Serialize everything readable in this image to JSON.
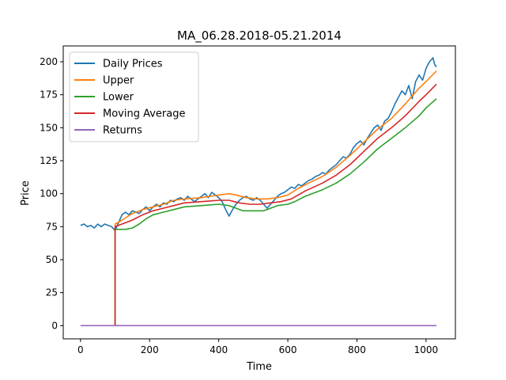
{
  "chart_data": {
    "type": "line",
    "title": "MA_06.28.2018-05.21.2014",
    "xlabel": "Time",
    "ylabel": "Price",
    "xlim": [
      -50,
      1085
    ],
    "ylim": [
      -10,
      212
    ],
    "xticks": [
      0,
      200,
      400,
      600,
      800,
      1000
    ],
    "yticks": [
      0,
      25,
      50,
      75,
      100,
      125,
      150,
      175,
      200
    ],
    "grid": false,
    "legend_position": "upper-left",
    "series": [
      {
        "name": "Daily Prices",
        "color": "#1f77b4",
        "points": [
          [
            0,
            76
          ],
          [
            10,
            77
          ],
          [
            20,
            75
          ],
          [
            30,
            76
          ],
          [
            40,
            74
          ],
          [
            50,
            77
          ],
          [
            60,
            75
          ],
          [
            70,
            77
          ],
          [
            80,
            76
          ],
          [
            90,
            75
          ],
          [
            100,
            72
          ],
          [
            110,
            78
          ],
          [
            120,
            84
          ],
          [
            130,
            86
          ],
          [
            140,
            84
          ],
          [
            150,
            87
          ],
          [
            160,
            86
          ],
          [
            170,
            85
          ],
          [
            180,
            88
          ],
          [
            190,
            90
          ],
          [
            200,
            87
          ],
          [
            210,
            90
          ],
          [
            220,
            92
          ],
          [
            230,
            90
          ],
          [
            240,
            93
          ],
          [
            250,
            92
          ],
          [
            260,
            95
          ],
          [
            270,
            94
          ],
          [
            280,
            96
          ],
          [
            290,
            97
          ],
          [
            300,
            95
          ],
          [
            310,
            98
          ],
          [
            320,
            96
          ],
          [
            330,
            94
          ],
          [
            340,
            96
          ],
          [
            350,
            98
          ],
          [
            360,
            100
          ],
          [
            370,
            97
          ],
          [
            380,
            101
          ],
          [
            390,
            99
          ],
          [
            400,
            97
          ],
          [
            410,
            94
          ],
          [
            420,
            88
          ],
          [
            430,
            83
          ],
          [
            440,
            88
          ],
          [
            450,
            92
          ],
          [
            460,
            95
          ],
          [
            470,
            97
          ],
          [
            480,
            98
          ],
          [
            490,
            96
          ],
          [
            500,
            95
          ],
          [
            510,
            97
          ],
          [
            520,
            95
          ],
          [
            530,
            92
          ],
          [
            540,
            89
          ],
          [
            550,
            92
          ],
          [
            560,
            95
          ],
          [
            570,
            98
          ],
          [
            580,
            100
          ],
          [
            590,
            101
          ],
          [
            600,
            103
          ],
          [
            610,
            105
          ],
          [
            620,
            104
          ],
          [
            630,
            107
          ],
          [
            640,
            106
          ],
          [
            650,
            108
          ],
          [
            660,
            110
          ],
          [
            670,
            111
          ],
          [
            680,
            113
          ],
          [
            690,
            114
          ],
          [
            700,
            116
          ],
          [
            710,
            115
          ],
          [
            720,
            118
          ],
          [
            730,
            120
          ],
          [
            740,
            122
          ],
          [
            750,
            125
          ],
          [
            760,
            128
          ],
          [
            770,
            127
          ],
          [
            780,
            130
          ],
          [
            790,
            135
          ],
          [
            800,
            138
          ],
          [
            810,
            140
          ],
          [
            820,
            137
          ],
          [
            830,
            142
          ],
          [
            840,
            146
          ],
          [
            850,
            150
          ],
          [
            860,
            152
          ],
          [
            870,
            148
          ],
          [
            880,
            155
          ],
          [
            890,
            157
          ],
          [
            900,
            162
          ],
          [
            910,
            168
          ],
          [
            920,
            173
          ],
          [
            930,
            178
          ],
          [
            940,
            175
          ],
          [
            950,
            182
          ],
          [
            960,
            172
          ],
          [
            970,
            185
          ],
          [
            980,
            190
          ],
          [
            990,
            186
          ],
          [
            1000,
            195
          ],
          [
            1010,
            200
          ],
          [
            1020,
            203
          ],
          [
            1025,
            198
          ],
          [
            1030,
            196
          ]
        ]
      },
      {
        "name": "Upper",
        "color": "#ff7f0e",
        "points": [
          [
            100,
            0
          ],
          [
            100,
            77
          ],
          [
            120,
            80
          ],
          [
            150,
            85
          ],
          [
            180,
            88
          ],
          [
            210,
            90
          ],
          [
            240,
            92
          ],
          [
            270,
            95
          ],
          [
            300,
            96
          ],
          [
            350,
            97
          ],
          [
            400,
            99
          ],
          [
            430,
            100
          ],
          [
            450,
            99
          ],
          [
            480,
            97
          ],
          [
            510,
            96
          ],
          [
            540,
            96
          ],
          [
            570,
            97
          ],
          [
            600,
            99
          ],
          [
            630,
            104
          ],
          [
            660,
            108
          ],
          [
            700,
            113
          ],
          [
            740,
            120
          ],
          [
            780,
            129
          ],
          [
            820,
            139
          ],
          [
            860,
            149
          ],
          [
            900,
            157
          ],
          [
            940,
            168
          ],
          [
            980,
            180
          ],
          [
            1000,
            185
          ],
          [
            1030,
            193
          ]
        ]
      },
      {
        "name": "Lower",
        "color": "#2ca02c",
        "points": [
          [
            100,
            0
          ],
          [
            100,
            73
          ],
          [
            130,
            73
          ],
          [
            150,
            74
          ],
          [
            170,
            77
          ],
          [
            190,
            81
          ],
          [
            210,
            84
          ],
          [
            240,
            86
          ],
          [
            270,
            88
          ],
          [
            300,
            90
          ],
          [
            350,
            91
          ],
          [
            400,
            92
          ],
          [
            430,
            91
          ],
          [
            450,
            89
          ],
          [
            470,
            87
          ],
          [
            500,
            87
          ],
          [
            530,
            87
          ],
          [
            550,
            89
          ],
          [
            570,
            91
          ],
          [
            600,
            92
          ],
          [
            620,
            94
          ],
          [
            650,
            98
          ],
          [
            700,
            103
          ],
          [
            740,
            108
          ],
          [
            780,
            115
          ],
          [
            820,
            124
          ],
          [
            860,
            134
          ],
          [
            900,
            142
          ],
          [
            940,
            150
          ],
          [
            980,
            159
          ],
          [
            1000,
            165
          ],
          [
            1030,
            172
          ]
        ]
      },
      {
        "name": "Moving Average",
        "color": "#d62728",
        "points": [
          [
            100,
            0
          ],
          [
            100,
            75
          ],
          [
            120,
            77
          ],
          [
            150,
            80
          ],
          [
            180,
            84
          ],
          [
            210,
            87
          ],
          [
            240,
            89
          ],
          [
            270,
            91
          ],
          [
            300,
            93
          ],
          [
            350,
            94
          ],
          [
            400,
            95
          ],
          [
            430,
            95
          ],
          [
            460,
            93
          ],
          [
            490,
            92
          ],
          [
            520,
            92
          ],
          [
            550,
            93
          ],
          [
            580,
            94
          ],
          [
            610,
            96
          ],
          [
            650,
            102
          ],
          [
            700,
            108
          ],
          [
            740,
            114
          ],
          [
            780,
            122
          ],
          [
            820,
            132
          ],
          [
            860,
            142
          ],
          [
            900,
            150
          ],
          [
            940,
            159
          ],
          [
            980,
            170
          ],
          [
            1000,
            175
          ],
          [
            1030,
            183
          ]
        ]
      },
      {
        "name": "Returns",
        "color": "#9467bd",
        "points": [
          [
            0,
            0
          ],
          [
            1030,
            0
          ]
        ]
      }
    ]
  }
}
